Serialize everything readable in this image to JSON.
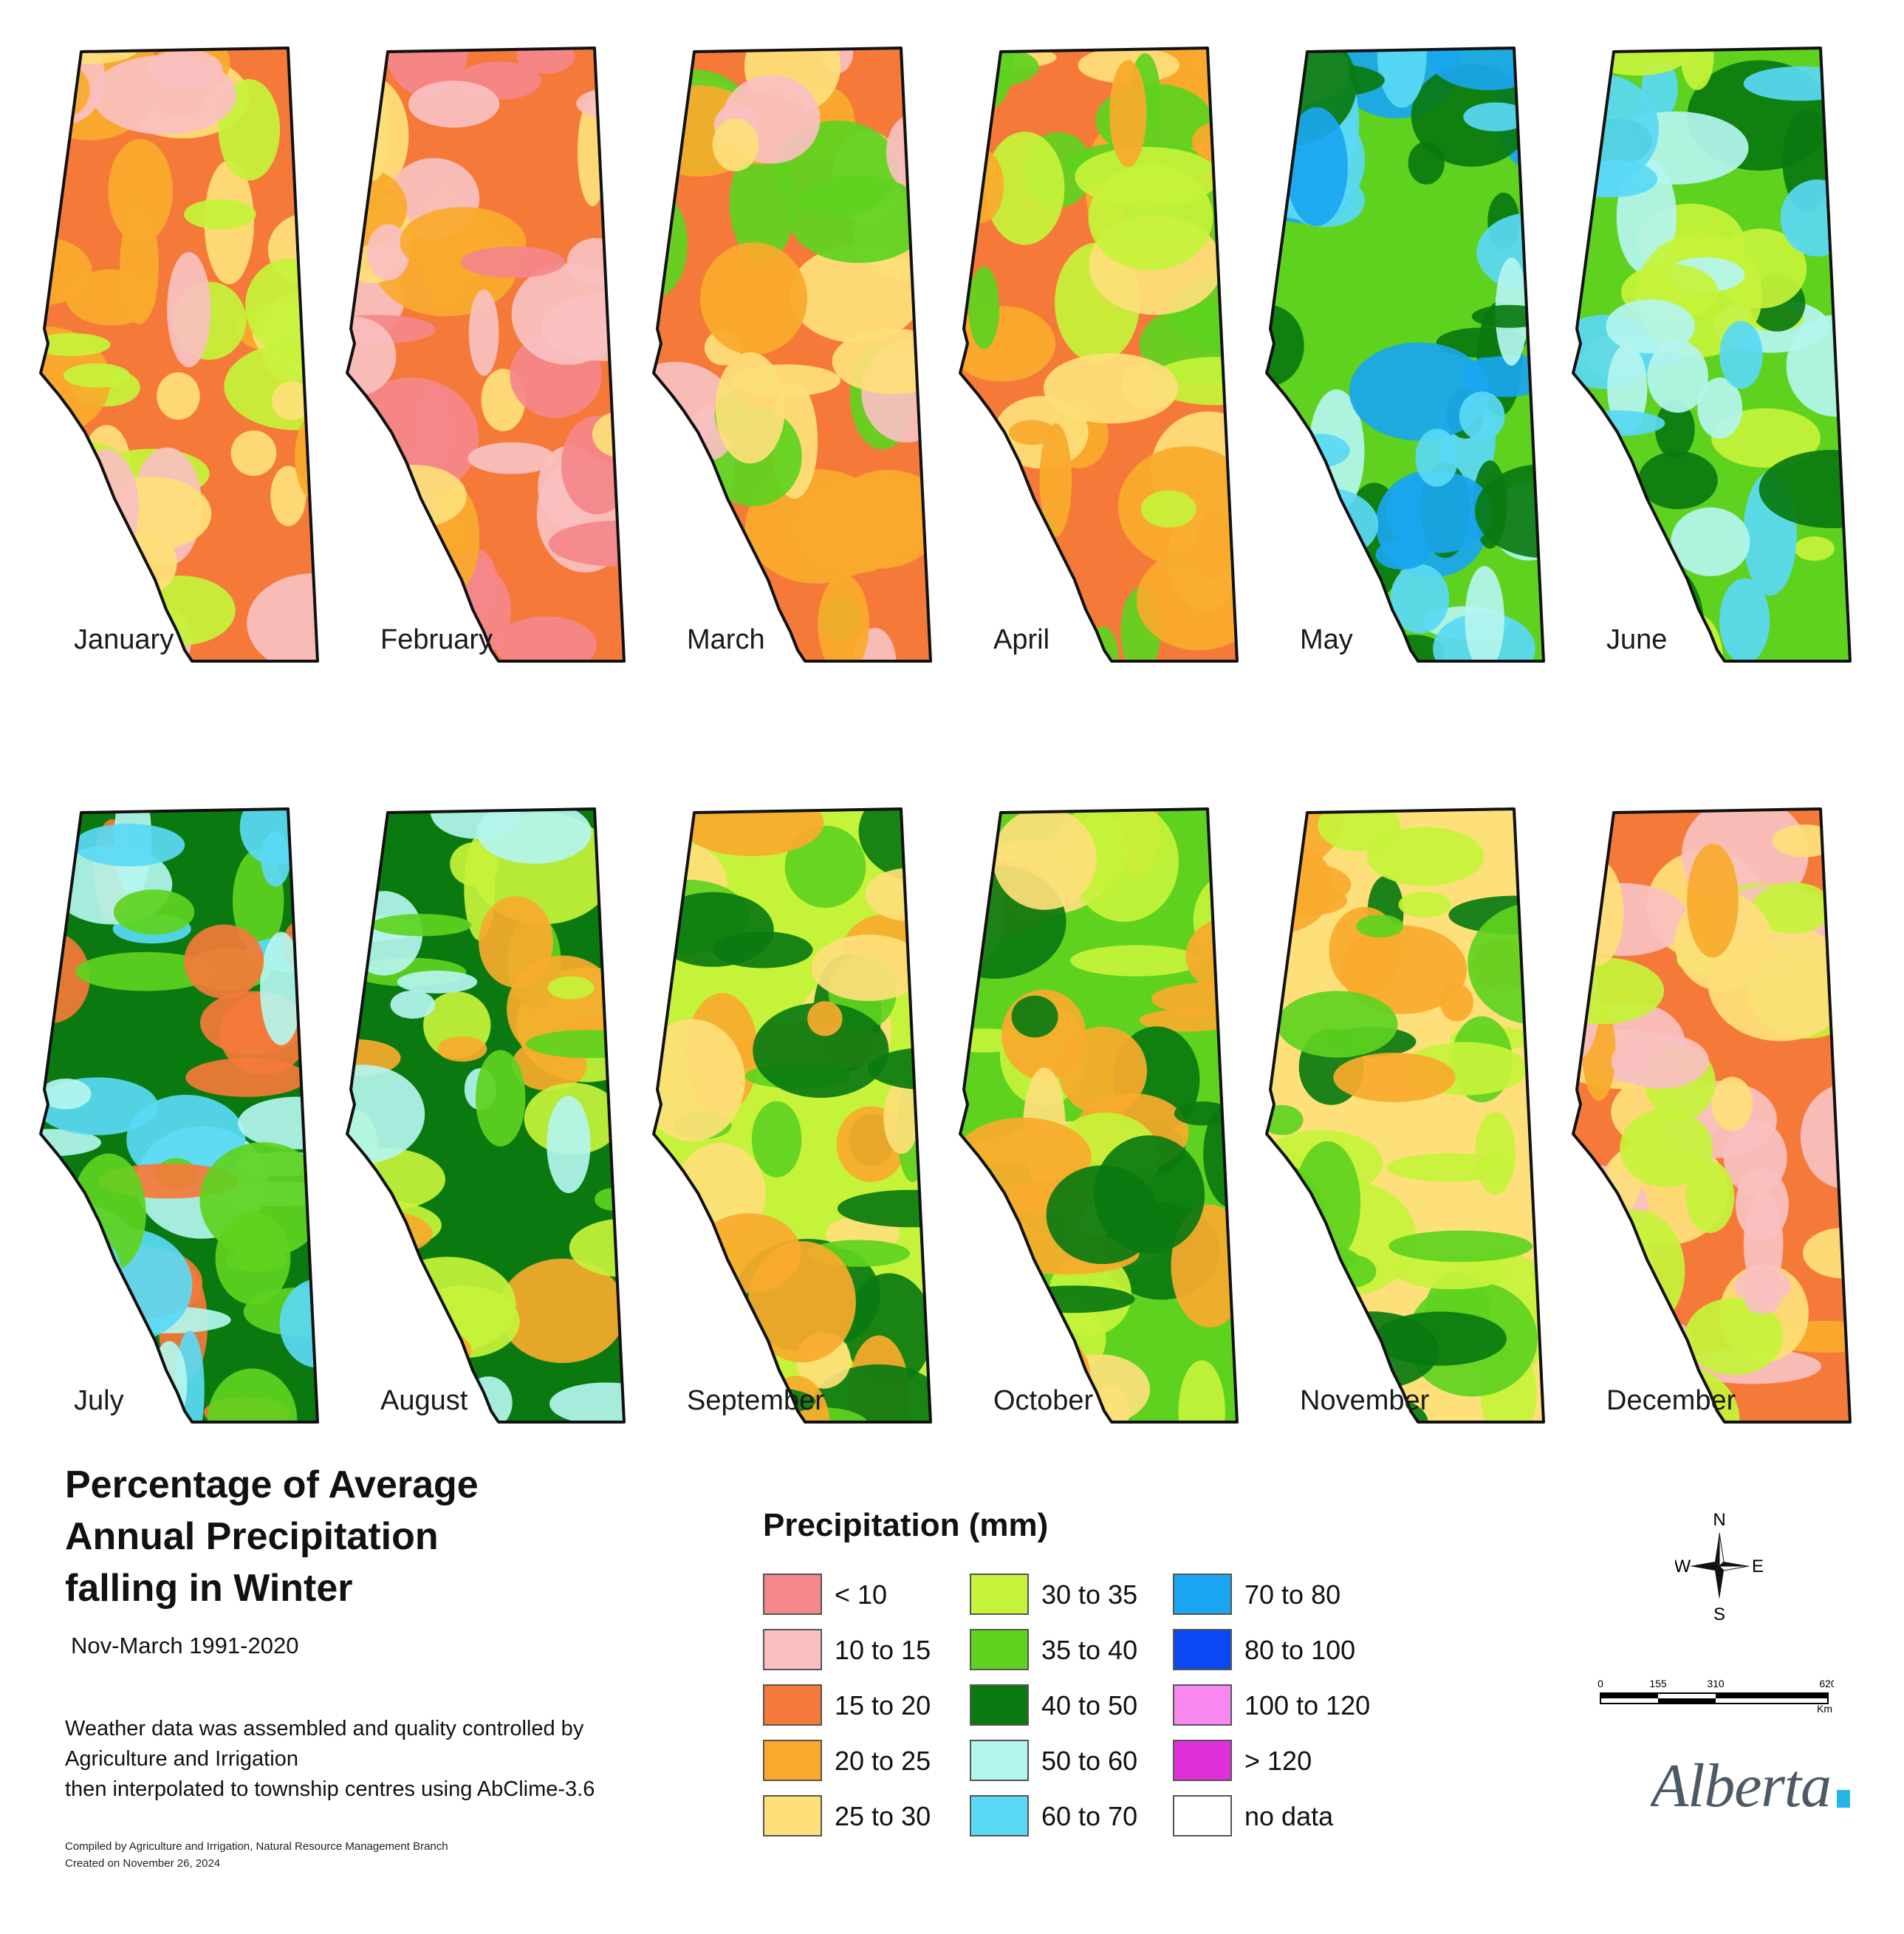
{
  "months": [
    {
      "name": "January",
      "zone": "tan"
    },
    {
      "name": "February",
      "zone": "pink"
    },
    {
      "name": "March",
      "zone": "orange"
    },
    {
      "name": "April",
      "zone": "yellow"
    },
    {
      "name": "May",
      "zone": "wet"
    },
    {
      "name": "June",
      "zone": "wet2"
    },
    {
      "name": "July",
      "zone": "wet3"
    },
    {
      "name": "August",
      "zone": "wet4"
    },
    {
      "name": "September",
      "zone": "green"
    },
    {
      "name": "October",
      "zone": "green2"
    },
    {
      "name": "November",
      "zone": "yellow2"
    },
    {
      "name": "December",
      "zone": "orange2"
    }
  ],
  "title_lines": [
    "Percentage of Average",
    "Annual Precipitation",
    "falling in Winter"
  ],
  "subtitle": "Nov-March 1991-2020",
  "notes": [
    "Weather data was assembled and quality controlled by",
    "Agriculture and Irrigation",
    "then interpolated to township centres using AbClime-3.6"
  ],
  "credits": [
    "Compiled by Agriculture and Irrigation, Natural Resource Management Branch",
    "Created on November 26, 2024"
  ],
  "legend": {
    "title": "Precipitation (mm)",
    "items": [
      {
        "label": "< 10",
        "color": "#f4878a"
      },
      {
        "label": "10 to 15",
        "color": "#f9c0c0"
      },
      {
        "label": "15 to 20",
        "color": "#f57a3a"
      },
      {
        "label": "20 to 25",
        "color": "#f8aa2c"
      },
      {
        "label": "25 to 30",
        "color": "#fde07a"
      },
      {
        "label": "30 to 35",
        "color": "#c5f33a"
      },
      {
        "label": "35 to 40",
        "color": "#5ed21f"
      },
      {
        "label": "40 to 50",
        "color": "#0a7a10"
      },
      {
        "label": "50 to  60",
        "color": "#b4f5ee"
      },
      {
        "label": "60 to 70",
        "color": "#5ad9f5"
      },
      {
        "label": "70 to 80",
        "color": "#1aa6f0"
      },
      {
        "label": "80 to 100",
        "color": "#0b47f2"
      },
      {
        "label": "100 to 120",
        "color": "#f888f0"
      },
      {
        "label": "> 120",
        "color": "#e030d8"
      },
      {
        "label": "no data",
        "color": "#ffffff"
      }
    ]
  },
  "compass": {
    "n": "N",
    "s": "S",
    "e": "E",
    "w": "W"
  },
  "scale": {
    "ticks": [
      "0",
      "155",
      "310",
      "620"
    ],
    "unit": "Km"
  },
  "logo_text": "Alberta"
}
